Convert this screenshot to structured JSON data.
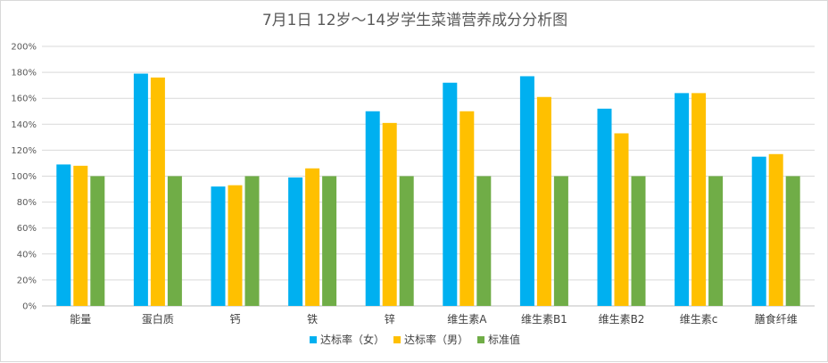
{
  "chart_data": {
    "type": "bar",
    "title": "7月1日 12岁～14岁学生菜谱营养成分分析图",
    "xlabel": "",
    "ylabel": "",
    "ylim": [
      0,
      200
    ],
    "yticks": [
      "0%",
      "20%",
      "40%",
      "60%",
      "80%",
      "100%",
      "120%",
      "140%",
      "160%",
      "180%",
      "200%"
    ],
    "grid": true,
    "legend_position": "bottom",
    "categories": [
      "能量",
      "蛋白质",
      "钙",
      "铁",
      "锌",
      "维生素A",
      "维生素B1",
      "维生素B2",
      "维生素c",
      "膳食纤维"
    ],
    "series": [
      {
        "name": "达标率（女）",
        "color": "#00b0f0",
        "values": [
          109,
          179,
          92,
          99,
          150,
          172,
          177,
          152,
          164,
          115
        ]
      },
      {
        "name": "达标率（男）",
        "color": "#ffc000",
        "values": [
          108,
          176,
          93,
          106,
          141,
          150,
          161,
          133,
          164,
          117
        ]
      },
      {
        "name": "标准值",
        "color": "#70ad47",
        "values": [
          100,
          100,
          100,
          100,
          100,
          100,
          100,
          100,
          100,
          100
        ]
      }
    ]
  }
}
